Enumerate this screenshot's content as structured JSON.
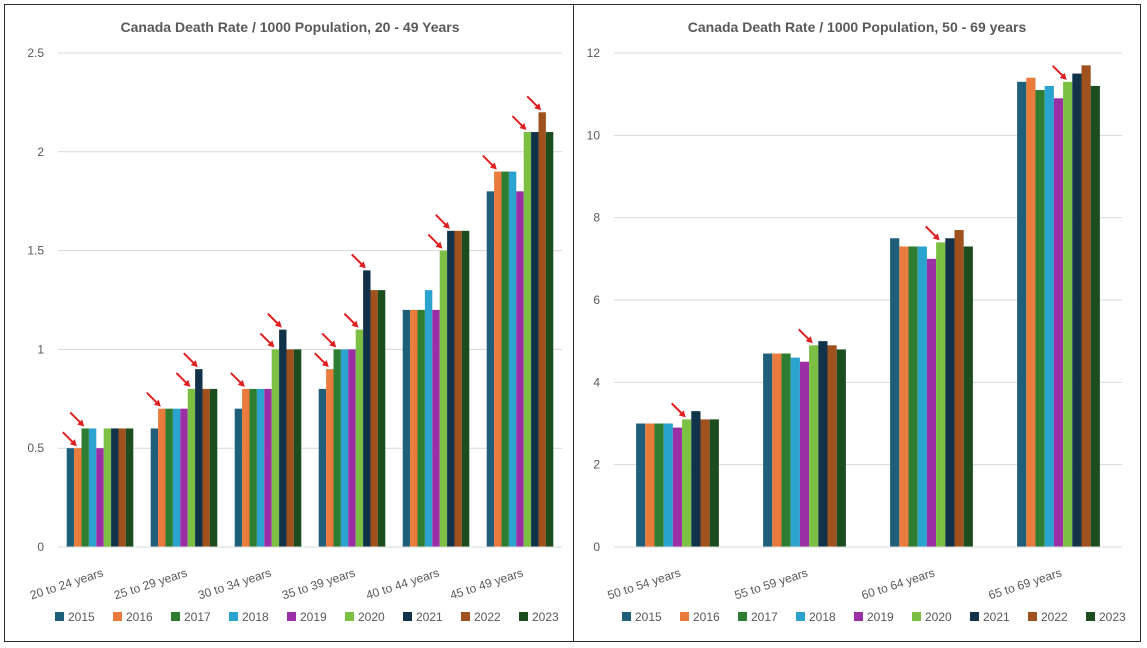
{
  "colors": {
    "2015": "#1F5F7A",
    "2016": "#E97B3C",
    "2017": "#2E7D32",
    "2018": "#2AA3CF",
    "2019": "#9B2FA6",
    "2020": "#7BC043",
    "2021": "#12324A",
    "2022": "#A0521E",
    "2023": "#1B4D1E",
    "arrow": "#E02020",
    "grid": "#D9D9D9"
  },
  "chart_data": [
    {
      "type": "bar",
      "title": "Canada Death Rate / 1000 Population, 20 - 49 Years",
      "categories": [
        "20 to 24 years",
        "25 to 29 years",
        "30 to 34 years",
        "35 to 39 years",
        "40 to 44 years",
        "45 to 49 years"
      ],
      "ylim": [
        0,
        2.5
      ],
      "yticks": [
        "0",
        "0.5",
        "1",
        "1.5",
        "2",
        "2.5"
      ],
      "ytick_values": [
        0,
        0.5,
        1,
        1.5,
        2,
        2.5
      ],
      "grid": true,
      "legend": "bottom",
      "series": [
        {
          "name": "2015",
          "values": [
            0.5,
            0.6,
            0.7,
            0.8,
            1.2,
            1.8
          ]
        },
        {
          "name": "2016",
          "values": [
            0.5,
            0.7,
            0.8,
            0.9,
            1.2,
            1.9
          ]
        },
        {
          "name": "2017",
          "values": [
            0.6,
            0.7,
            0.8,
            1.0,
            1.2,
            1.9
          ]
        },
        {
          "name": "2018",
          "values": [
            0.6,
            0.7,
            0.8,
            1.0,
            1.3,
            1.9
          ]
        },
        {
          "name": "2019",
          "values": [
            0.5,
            0.7,
            0.8,
            1.0,
            1.2,
            1.8
          ]
        },
        {
          "name": "2020",
          "values": [
            0.6,
            0.8,
            1.0,
            1.1,
            1.5,
            2.1
          ]
        },
        {
          "name": "2021",
          "values": [
            0.6,
            0.9,
            1.1,
            1.4,
            1.6,
            2.1
          ]
        },
        {
          "name": "2022",
          "values": [
            0.6,
            0.8,
            1.0,
            1.3,
            1.6,
            2.2
          ]
        },
        {
          "name": "2023",
          "values": [
            0.6,
            0.8,
            1.0,
            1.3,
            1.6,
            2.1
          ]
        }
      ],
      "arrows": [
        {
          "category": 0,
          "series": 1
        },
        {
          "category": 0,
          "series": 2
        },
        {
          "category": 1,
          "series": 1
        },
        {
          "category": 1,
          "series": 5
        },
        {
          "category": 1,
          "series": 6
        },
        {
          "category": 2,
          "series": 1
        },
        {
          "category": 2,
          "series": 5
        },
        {
          "category": 2,
          "series": 6
        },
        {
          "category": 3,
          "series": 1
        },
        {
          "category": 3,
          "series": 2
        },
        {
          "category": 3,
          "series": 5
        },
        {
          "category": 3,
          "series": 6
        },
        {
          "category": 4,
          "series": 5
        },
        {
          "category": 4,
          "series": 6
        },
        {
          "category": 5,
          "series": 1
        },
        {
          "category": 5,
          "series": 5
        },
        {
          "category": 5,
          "series": 7
        }
      ]
    },
    {
      "type": "bar",
      "title": "Canada Death Rate / 1000 Population, 50 - 69 years",
      "categories": [
        "50 to 54 years",
        "55 to 59 years",
        "60 to 64 years",
        "65 to 69 years"
      ],
      "ylim": [
        0,
        12
      ],
      "yticks": [
        "0",
        "2",
        "4",
        "6",
        "8",
        "10",
        "12"
      ],
      "ytick_values": [
        0,
        2,
        4,
        6,
        8,
        10,
        12
      ],
      "grid": true,
      "legend": "bottom",
      "series": [
        {
          "name": "2015",
          "values": [
            3.0,
            4.7,
            7.5,
            11.3
          ]
        },
        {
          "name": "2016",
          "values": [
            3.0,
            4.7,
            7.3,
            11.4
          ]
        },
        {
          "name": "2017",
          "values": [
            3.0,
            4.7,
            7.3,
            11.1
          ]
        },
        {
          "name": "2018",
          "values": [
            3.0,
            4.6,
            7.3,
            11.2
          ]
        },
        {
          "name": "2019",
          "values": [
            2.9,
            4.5,
            7.0,
            10.9
          ]
        },
        {
          "name": "2020",
          "values": [
            3.1,
            4.9,
            7.4,
            11.3
          ]
        },
        {
          "name": "2021",
          "values": [
            3.3,
            5.0,
            7.5,
            11.5
          ]
        },
        {
          "name": "2022",
          "values": [
            3.1,
            4.9,
            7.7,
            11.7
          ]
        },
        {
          "name": "2023",
          "values": [
            3.1,
            4.8,
            7.3,
            11.2
          ]
        }
      ],
      "arrows": [
        {
          "category": 0,
          "series": 5
        },
        {
          "category": 1,
          "series": 5
        },
        {
          "category": 2,
          "series": 5
        },
        {
          "category": 3,
          "series": 5
        }
      ]
    }
  ]
}
